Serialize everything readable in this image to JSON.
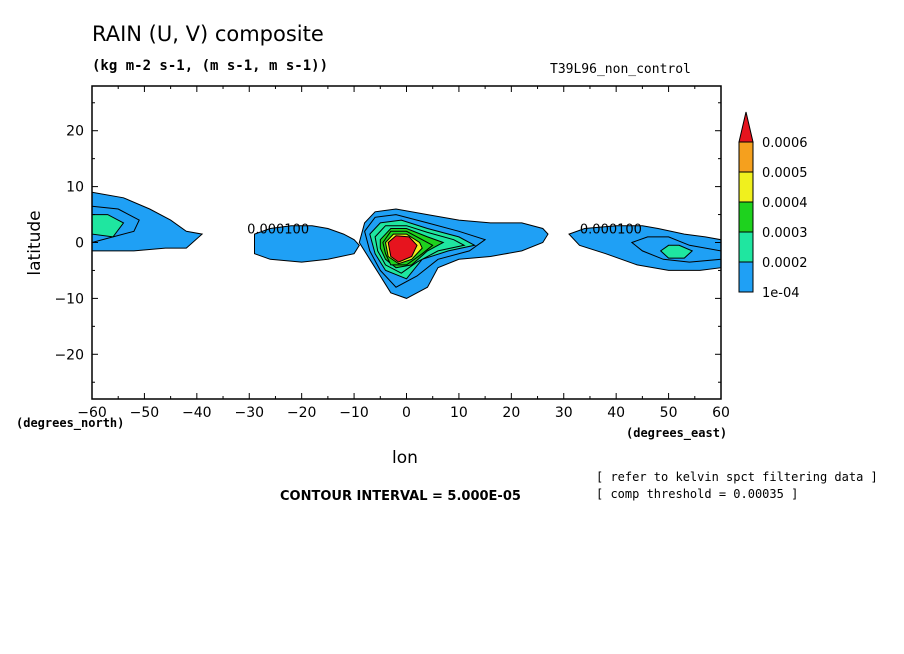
{
  "title": "RAIN (U, V) composite",
  "subtitle": "(kg m-2 s-1, (m s-1, m s-1))",
  "run_label": "T39L96_non_control",
  "notes": {
    "contour_interval": "CONTOUR INTERVAL = 5.000E-05",
    "refer": "[ refer to kelvin spct filtering data ]",
    "threshold": "[ comp threshold = 0.00035 ]"
  },
  "chart_data": {
    "type": "heatmap",
    "title": "RAIN (U, V) composite",
    "subtitle": "(kg m-2 s-1, (m s-1, m s-1))",
    "xlabel": "lon",
    "ylabel": "latitude",
    "xunit": "(degrees_east)",
    "yunit": "(degrees_north)",
    "xlim": [
      -60,
      60
    ],
    "ylim": [
      -28,
      28
    ],
    "xticks": [
      -60,
      -50,
      -40,
      -30,
      -20,
      -10,
      0,
      10,
      20,
      30,
      40,
      50,
      60
    ],
    "yticks": [
      -20,
      -10,
      0,
      10,
      20
    ],
    "contour_interval": 5e-05,
    "legend": {
      "placement": "right",
      "levels": [
        "1e-04",
        "0.0002",
        "0.0003",
        "0.0004",
        "0.0005",
        "0.0006"
      ],
      "colors": [
        "#1fa0f5",
        "#1fe6a0",
        "#1ed21e",
        "#f0f01e",
        "#f5a01e",
        "#e6141e"
      ]
    },
    "contour_labels": [
      {
        "text": "0.000100",
        "lon": -24.5,
        "lat": 1.6
      },
      {
        "text": "0.000100",
        "lon": 39,
        "lat": 1.6
      }
    ],
    "regions": [
      {
        "level": 0.0001,
        "points": [
          [
            -60,
            9
          ],
          [
            -54,
            8
          ],
          [
            -49,
            6
          ],
          [
            -45,
            4
          ],
          [
            -42,
            2
          ],
          [
            -39,
            1.5
          ],
          [
            -42,
            -1
          ],
          [
            -46,
            -1
          ],
          [
            -52,
            -1.5
          ],
          [
            -60,
            -1.5
          ]
        ]
      },
      {
        "level": 0.00015,
        "points": [
          [
            -60,
            6.5
          ],
          [
            -55,
            6
          ],
          [
            -51,
            4
          ],
          [
            -52,
            2
          ],
          [
            -56,
            1
          ],
          [
            -60,
            0
          ]
        ]
      },
      {
        "level": 0.0002,
        "points": [
          [
            -60,
            5
          ],
          [
            -57,
            5
          ],
          [
            -54,
            3.5
          ],
          [
            -56,
            1
          ],
          [
            -60,
            1.5
          ]
        ]
      },
      {
        "level": 0.0001,
        "points": [
          [
            -29,
            1.5
          ],
          [
            -26,
            2.5
          ],
          [
            -22,
            3
          ],
          [
            -18,
            3
          ],
          [
            -15,
            2.5
          ],
          [
            -12,
            1.5
          ],
          [
            -10,
            0.5
          ],
          [
            -9,
            -0.5
          ],
          [
            -10,
            -2
          ],
          [
            -15,
            -3
          ],
          [
            -20,
            -3.5
          ],
          [
            -26,
            -3
          ],
          [
            -29,
            -2
          ]
        ]
      },
      {
        "level": 0.0001,
        "points": [
          [
            -9,
            0
          ],
          [
            -8,
            3.5
          ],
          [
            -6,
            5.5
          ],
          [
            -2,
            6
          ],
          [
            4,
            5
          ],
          [
            10,
            4
          ],
          [
            16,
            3.5
          ],
          [
            22,
            3.5
          ],
          [
            26,
            2.5
          ],
          [
            27,
            1.5
          ],
          [
            26,
            0
          ],
          [
            22,
            -1.5
          ],
          [
            16,
            -2.5
          ],
          [
            10,
            -3
          ],
          [
            6,
            -4.5
          ],
          [
            4,
            -8
          ],
          [
            0,
            -10
          ],
          [
            -3,
            -9
          ],
          [
            -5,
            -6
          ],
          [
            -7,
            -3
          ]
        ]
      },
      {
        "level": 0.00015,
        "points": [
          [
            -8,
            2
          ],
          [
            -6,
            4.5
          ],
          [
            -2,
            5
          ],
          [
            4,
            3.5
          ],
          [
            10,
            2
          ],
          [
            15,
            0.5
          ],
          [
            12,
            -1.5
          ],
          [
            6,
            -3
          ],
          [
            2,
            -6
          ],
          [
            -2,
            -8
          ],
          [
            -5,
            -5
          ],
          [
            -7,
            -1.5
          ]
        ]
      },
      {
        "level": 0.0002,
        "points": [
          [
            -7,
            1.5
          ],
          [
            -5,
            3.5
          ],
          [
            -1,
            4
          ],
          [
            4,
            2.5
          ],
          [
            10,
            1
          ],
          [
            13,
            -0.5
          ],
          [
            8,
            -1.5
          ],
          [
            3,
            -3
          ],
          [
            0,
            -6.5
          ],
          [
            -4,
            -5
          ],
          [
            -6,
            -2
          ]
        ]
      },
      {
        "level": 0.00025,
        "points": [
          [
            -6,
            1
          ],
          [
            -4,
            3
          ],
          [
            0,
            3
          ],
          [
            4,
            1.8
          ],
          [
            9,
            0.5
          ],
          [
            11,
            -0.5
          ],
          [
            6,
            -1.5
          ],
          [
            2,
            -3.5
          ],
          [
            -1,
            -5.5
          ],
          [
            -4,
            -4
          ],
          [
            -5.5,
            -1.5
          ]
        ]
      },
      {
        "level": 0.0003,
        "points": [
          [
            -5,
            0.5
          ],
          [
            -3,
            2.5
          ],
          [
            0,
            2.5
          ],
          [
            4,
            1
          ],
          [
            7,
            0
          ],
          [
            4,
            -1.5
          ],
          [
            1,
            -4
          ],
          [
            -2,
            -4.5
          ],
          [
            -4,
            -3
          ],
          [
            -5,
            -1
          ]
        ]
      },
      {
        "level": 0.00035,
        "points": [
          [
            -4.5,
            0
          ],
          [
            -3,
            2
          ],
          [
            0,
            2
          ],
          [
            3,
            0.5
          ],
          [
            5,
            -0.5
          ],
          [
            3,
            -2
          ],
          [
            0,
            -4
          ],
          [
            -3,
            -4
          ],
          [
            -4,
            -2
          ]
        ]
      },
      {
        "level": 0.0004,
        "points": [
          [
            -4,
            0
          ],
          [
            -2.5,
            1.5
          ],
          [
            0,
            1.5
          ],
          [
            2.5,
            0
          ],
          [
            3,
            -1
          ],
          [
            1,
            -3
          ],
          [
            -1.5,
            -3.8
          ],
          [
            -3.5,
            -2.5
          ]
        ]
      },
      {
        "level": 0.0006,
        "points": [
          [
            -3.5,
            0
          ],
          [
            -2,
            1.2
          ],
          [
            0.5,
            1
          ],
          [
            2,
            -0.5
          ],
          [
            1,
            -2.5
          ],
          [
            -1.5,
            -3.5
          ],
          [
            -3,
            -2.5
          ]
        ]
      },
      {
        "level": 0.0001,
        "points": [
          [
            31,
            1.5
          ],
          [
            34,
            2.5
          ],
          [
            40,
            3
          ],
          [
            45,
            3
          ],
          [
            48,
            2.5
          ],
          [
            53,
            1.5
          ],
          [
            57,
            1
          ],
          [
            60,
            0.5
          ],
          [
            60,
            -4.5
          ],
          [
            56,
            -5
          ],
          [
            50,
            -5
          ],
          [
            44,
            -4
          ],
          [
            38,
            -2
          ],
          [
            33,
            -0.5
          ]
        ]
      },
      {
        "level": 0.00015,
        "points": [
          [
            43,
            0
          ],
          [
            46,
            1
          ],
          [
            50,
            1
          ],
          [
            54,
            -0.5
          ],
          [
            60,
            -1.5
          ],
          [
            60,
            -3
          ],
          [
            54,
            -3.5
          ],
          [
            49,
            -3
          ],
          [
            45,
            -1.5
          ]
        ]
      },
      {
        "level": 0.0002,
        "points": [
          [
            48.5,
            -1.5
          ],
          [
            50,
            -0.5
          ],
          [
            52,
            -0.5
          ],
          [
            54.5,
            -1.5
          ],
          [
            53,
            -2.8
          ],
          [
            50,
            -2.8
          ]
        ]
      }
    ]
  }
}
